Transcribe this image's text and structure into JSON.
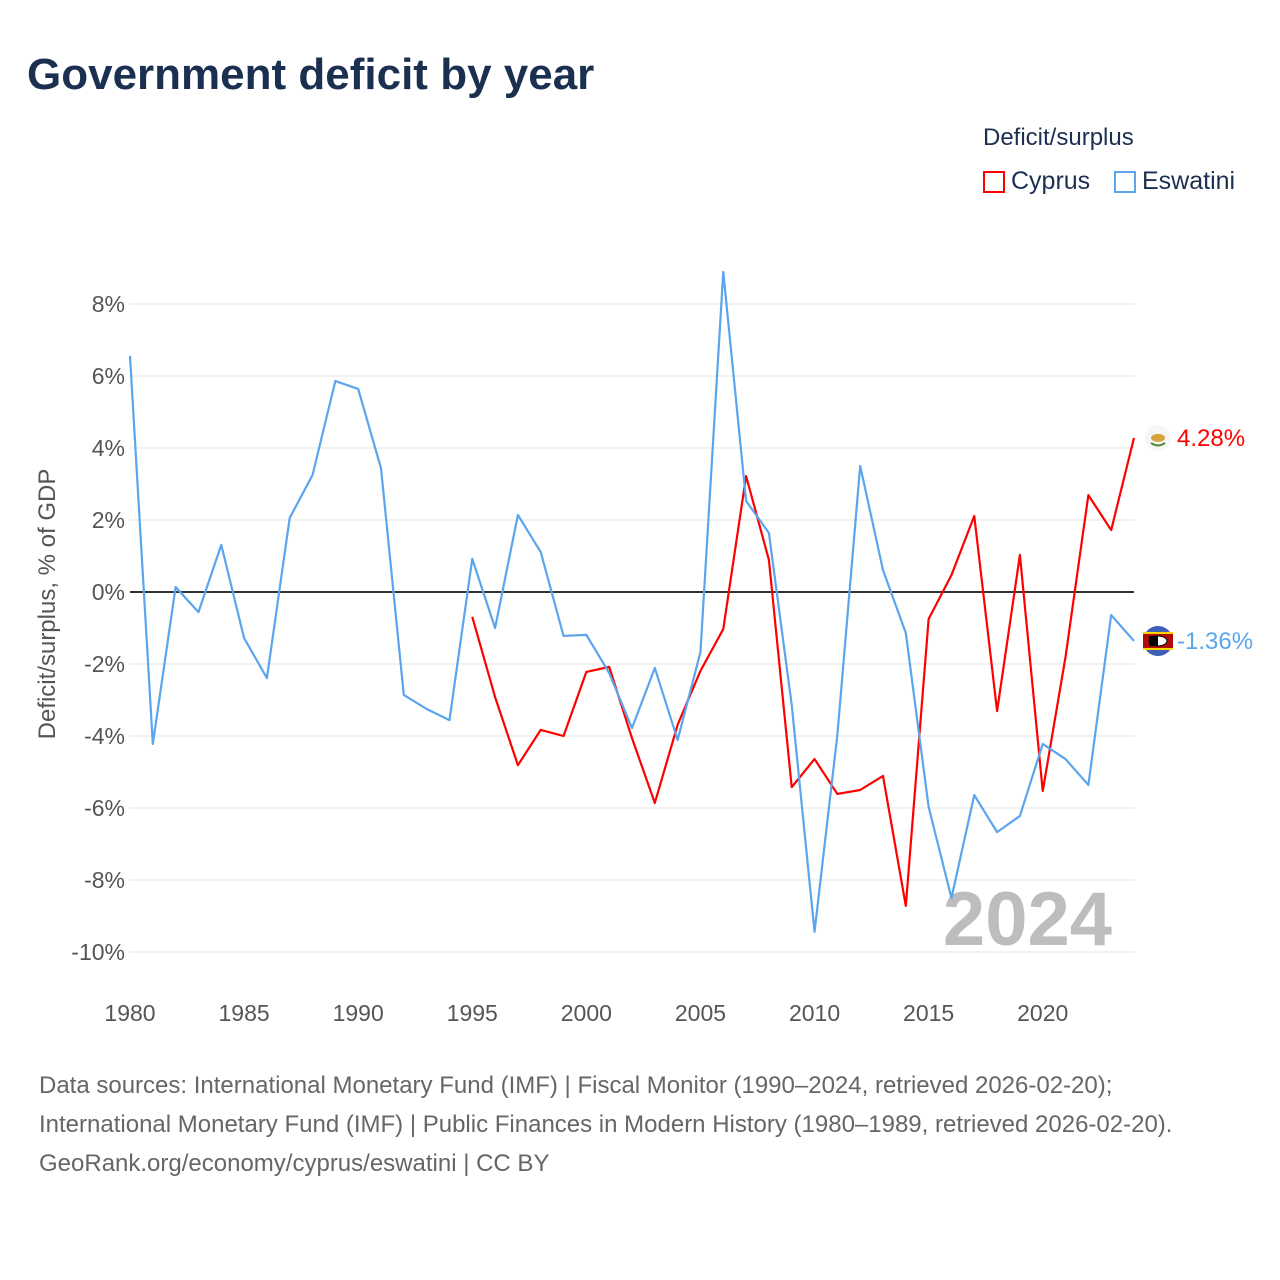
{
  "title": "Government deficit by year",
  "legend": {
    "title": "Deficit/surplus",
    "items": [
      {
        "label": "Cyprus",
        "color": "#ff0000"
      },
      {
        "label": "Eswatini",
        "color": "#5aa5ee"
      }
    ]
  },
  "year_watermark": "2024",
  "sources": {
    "line1": "Data sources: International Monetary Fund (IMF) | Fiscal Monitor (1990–2024, retrieved 2026-02-20); International Monetary Fund (IMF) | Public Finances in Modern History (1980–1989, retrieved 2026-02-20).",
    "line2": "GeoRank.org/economy/cyprus/eswatini | CC BY"
  },
  "chart_data": {
    "type": "line",
    "ylabel": "Deficit/surplus, % of GDP",
    "xlabel": "",
    "xlim": [
      1980,
      2024
    ],
    "ylim": [
      -10,
      8
    ],
    "x_ticks": [
      1980,
      1985,
      1990,
      1995,
      2000,
      2005,
      2010,
      2015,
      2020
    ],
    "x_tick_labels": [
      "1980",
      "1985",
      "1990",
      "1995",
      "2000",
      "2005",
      "2010",
      "2015",
      "2020"
    ],
    "y_ticks": [
      8,
      6,
      4,
      2,
      0,
      -2,
      -4,
      -6,
      -8,
      -10
    ],
    "y_tick_labels": [
      "8%",
      "6%",
      "4%",
      "2%",
      "0%",
      "-2%",
      "-4%",
      "-6%",
      "-8%",
      "-10%"
    ],
    "grid": true,
    "series": [
      {
        "name": "Cyprus",
        "color": "#ff0000",
        "end_label": "4.28%",
        "start": 1995,
        "values": [
          -0.69,
          -2.92,
          -4.81,
          -3.83,
          -4.0,
          -2.22,
          -2.08,
          -4.06,
          -5.86,
          -3.69,
          -2.19,
          -1.03,
          3.22,
          0.89,
          -5.42,
          -4.64,
          -5.61,
          -5.5,
          -5.11,
          -8.72,
          -0.75,
          0.47,
          2.11,
          -3.31,
          1.03,
          -5.53,
          -1.8,
          2.69,
          1.72,
          4.28
        ]
      },
      {
        "name": "Eswatini",
        "color": "#5aa5ee",
        "end_label": "-1.36%",
        "start": 1980,
        "values": [
          6.56,
          -4.22,
          0.14,
          -0.56,
          1.31,
          -1.28,
          -2.39,
          2.06,
          3.25,
          5.86,
          5.64,
          3.44,
          -2.86,
          -3.25,
          -3.56,
          0.92,
          -1.0,
          2.14,
          1.11,
          -1.22,
          -1.19,
          -2.25,
          -3.78,
          -2.11,
          -4.11,
          -1.67,
          8.89,
          2.53,
          1.64,
          -3.14,
          -9.44,
          -3.97,
          3.5,
          0.61,
          -1.14,
          -5.97,
          -8.5,
          -5.64,
          -6.67,
          -6.22,
          -4.22,
          -4.64,
          -5.36,
          -0.64,
          -1.36
        ]
      }
    ]
  }
}
